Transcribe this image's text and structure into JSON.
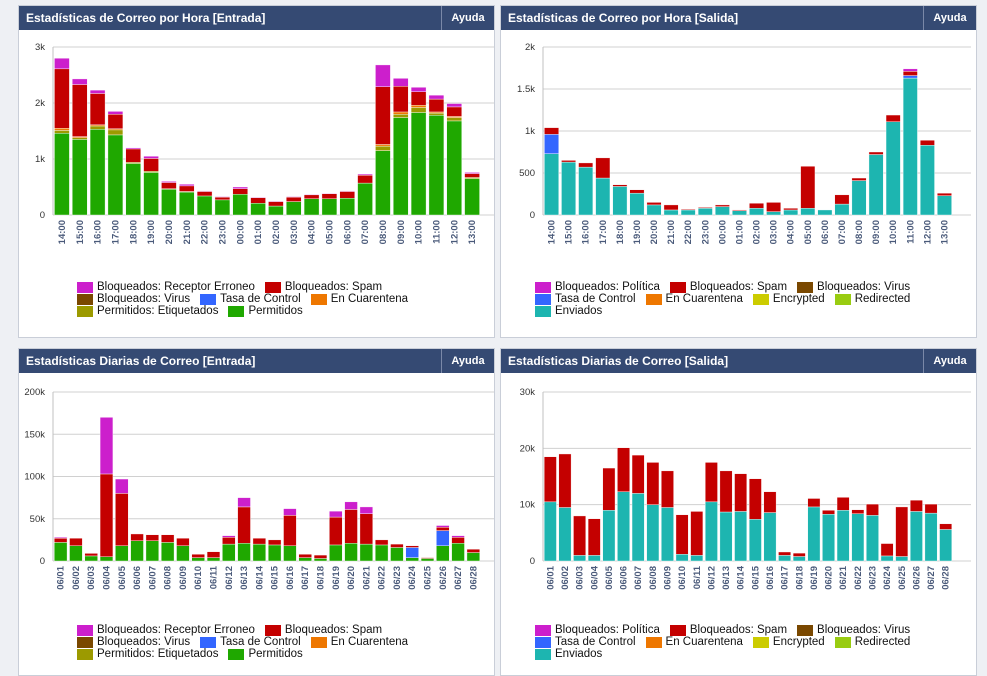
{
  "chart_data": [
    {
      "type": "bar",
      "stacked": true,
      "title": "Estadísticas de Correo por Hora [Entrada]",
      "button": "Ayuda",
      "categories": [
        "14:00",
        "15:00",
        "16:00",
        "17:00",
        "18:00",
        "19:00",
        "20:00",
        "21:00",
        "22:00",
        "23:00",
        "00:00",
        "01:00",
        "02:00",
        "03:00",
        "04:00",
        "05:00",
        "06:00",
        "07:00",
        "08:00",
        "09:00",
        "10:00",
        "11:00",
        "12:00",
        "13:00"
      ],
      "ylim": [
        0,
        3000
      ],
      "yticks": [
        0,
        {
          "value": 1000,
          "label": "1k"
        },
        {
          "value": 2000,
          "label": "2k"
        },
        {
          "value": 3000,
          "label": "3k"
        }
      ],
      "grid": true,
      "series": [
        {
          "name": "Bloqueados: Receptor Erroneo",
          "color": "#cc1fcc",
          "values": [
            190,
            100,
            60,
            50,
            20,
            40,
            20,
            30,
            10,
            10,
            30,
            10,
            10,
            10,
            10,
            10,
            10,
            20,
            390,
            140,
            80,
            70,
            60,
            20
          ]
        },
        {
          "name": "Bloqueados: Spam",
          "color": "#c40000",
          "values": [
            1060,
            930,
            560,
            260,
            240,
            230,
            110,
            100,
            80,
            50,
            100,
            100,
            80,
            80,
            70,
            90,
            120,
            140,
            1030,
            460,
            240,
            230,
            170,
            70
          ]
        },
        {
          "name": "Bloqueados: Virus",
          "color": "#7a4800",
          "values": [
            0,
            0,
            0,
            0,
            0,
            0,
            0,
            0,
            0,
            0,
            0,
            0,
            0,
            0,
            0,
            0,
            0,
            0,
            0,
            0,
            0,
            0,
            0,
            0
          ]
        },
        {
          "name": "Tasa de Control",
          "color": "#3366ff",
          "values": [
            0,
            0,
            0,
            0,
            0,
            0,
            0,
            0,
            0,
            0,
            0,
            0,
            0,
            0,
            0,
            0,
            0,
            0,
            0,
            0,
            0,
            0,
            0,
            0
          ]
        },
        {
          "name": "En Cuarentena",
          "color": "#ee7700",
          "values": [
            40,
            20,
            20,
            20,
            0,
            0,
            0,
            0,
            0,
            0,
            0,
            0,
            0,
            0,
            0,
            0,
            0,
            0,
            30,
            40,
            40,
            20,
            20,
            0
          ]
        },
        {
          "name": "Permitidos: Etiquetados",
          "color": "#9c9a00",
          "values": [
            50,
            30,
            60,
            90,
            20,
            20,
            10,
            10,
            0,
            0,
            0,
            0,
            0,
            0,
            0,
            0,
            0,
            0,
            80,
            60,
            90,
            40,
            60,
            20
          ]
        },
        {
          "name": "Permitidos",
          "color": "#1fa800",
          "values": [
            1460,
            1350,
            1530,
            1430,
            920,
            760,
            460,
            410,
            340,
            270,
            370,
            210,
            160,
            240,
            290,
            290,
            300,
            570,
            1150,
            1740,
            1830,
            1780,
            1680,
            650
          ]
        }
      ]
    },
    {
      "type": "bar",
      "stacked": true,
      "title": "Estadísticas de Correo por Hora [Salida]",
      "button": "Ayuda",
      "categories": [
        "14:00",
        "15:00",
        "16:00",
        "17:00",
        "18:00",
        "19:00",
        "20:00",
        "21:00",
        "22:00",
        "23:00",
        "00:00",
        "01:00",
        "02:00",
        "03:00",
        "04:00",
        "05:00",
        "06:00",
        "07:00",
        "08:00",
        "09:00",
        "10:00",
        "11:00",
        "12:00",
        "13:00"
      ],
      "ylim": [
        0,
        2000
      ],
      "yticks": [
        0,
        500,
        {
          "value": 1000,
          "label": "1k"
        },
        {
          "value": 1500,
          "label": "1.5k"
        },
        {
          "value": 2000,
          "label": "2k"
        }
      ],
      "grid": true,
      "series": [
        {
          "name": "Bloqueados: Política",
          "color": "#cc1fcc",
          "values": [
            0,
            0,
            0,
            0,
            0,
            0,
            0,
            0,
            0,
            0,
            0,
            0,
            0,
            0,
            0,
            0,
            0,
            0,
            0,
            0,
            0,
            30,
            0,
            0
          ]
        },
        {
          "name": "Bloqueados: Spam",
          "color": "#c40000",
          "values": [
            80,
            20,
            50,
            240,
            20,
            40,
            30,
            60,
            10,
            10,
            20,
            10,
            60,
            110,
            20,
            500,
            0,
            110,
            30,
            30,
            80,
            50,
            60,
            30
          ]
        },
        {
          "name": "Bloqueados: Virus",
          "color": "#7a4800",
          "values": [
            0,
            0,
            0,
            0,
            0,
            0,
            0,
            0,
            0,
            0,
            0,
            0,
            0,
            0,
            0,
            0,
            0,
            0,
            0,
            0,
            0,
            0,
            0,
            0
          ]
        },
        {
          "name": "Tasa de Control",
          "color": "#3366ff",
          "values": [
            230,
            0,
            0,
            0,
            0,
            0,
            0,
            0,
            0,
            0,
            0,
            0,
            0,
            0,
            0,
            0,
            0,
            0,
            0,
            0,
            0,
            30,
            0,
            0
          ]
        },
        {
          "name": "En Cuarentena",
          "color": "#ee7700",
          "values": [
            0,
            0,
            0,
            0,
            0,
            0,
            0,
            0,
            0,
            0,
            0,
            0,
            0,
            0,
            0,
            0,
            0,
            0,
            0,
            0,
            0,
            0,
            0,
            0
          ]
        },
        {
          "name": "Encrypted",
          "color": "#cccc00",
          "values": [
            0,
            0,
            0,
            0,
            0,
            0,
            0,
            0,
            0,
            0,
            0,
            0,
            0,
            0,
            0,
            0,
            0,
            0,
            0,
            0,
            0,
            0,
            0,
            0
          ]
        },
        {
          "name": "Redirected",
          "color": "#99cc11",
          "values": [
            0,
            0,
            0,
            0,
            0,
            0,
            0,
            0,
            0,
            0,
            0,
            0,
            0,
            0,
            0,
            0,
            0,
            0,
            0,
            0,
            0,
            0,
            0,
            0
          ]
        },
        {
          "name": "Enviados",
          "color": "#1db5b0",
          "values": [
            730,
            630,
            570,
            440,
            340,
            260,
            120,
            60,
            60,
            80,
            100,
            50,
            80,
            40,
            60,
            80,
            60,
            130,
            410,
            720,
            1110,
            1630,
            830,
            230
          ]
        }
      ]
    },
    {
      "type": "bar",
      "stacked": true,
      "title": "Estadísticas Diarias de Correo [Entrada]",
      "button": "Ayuda",
      "categories": [
        "06/01",
        "06/02",
        "06/03",
        "06/04",
        "06/05",
        "06/06",
        "06/07",
        "06/08",
        "06/09",
        "06/10",
        "06/11",
        "06/12",
        "06/13",
        "06/14",
        "06/15",
        "06/16",
        "06/17",
        "06/18",
        "06/19",
        "06/20",
        "06/21",
        "06/22",
        "06/23",
        "06/24",
        "06/25",
        "06/26",
        "06/27",
        "06/28"
      ],
      "ylim": [
        0,
        200000
      ],
      "yticks": [
        0,
        {
          "value": 50000,
          "label": "50k"
        },
        {
          "value": 100000,
          "label": "100k"
        },
        {
          "value": 150000,
          "label": "150k"
        },
        {
          "value": 200000,
          "label": "200k"
        }
      ],
      "grid": true,
      "series": [
        {
          "name": "Bloqueados: Receptor Erroneo",
          "color": "#cc1fcc",
          "values": [
            1000,
            0,
            0,
            67000,
            17000,
            0,
            0,
            0,
            0,
            0,
            0,
            2000,
            11000,
            0,
            0,
            8000,
            0,
            0,
            7000,
            9000,
            8000,
            0,
            0,
            0,
            0,
            2000,
            2000,
            0
          ]
        },
        {
          "name": "Bloqueados: Spam",
          "color": "#c40000",
          "values": [
            5000,
            9000,
            3000,
            98000,
            62000,
            8000,
            7000,
            9000,
            9000,
            4000,
            7000,
            8000,
            43000,
            7000,
            6000,
            36000,
            4000,
            4000,
            33000,
            40000,
            36000,
            6000,
            4000,
            2000,
            1000,
            4000,
            7000,
            4000
          ]
        },
        {
          "name": "Bloqueados: Virus",
          "color": "#7a4800",
          "values": [
            0,
            0,
            0,
            0,
            0,
            0,
            0,
            0,
            0,
            0,
            0,
            0,
            0,
            0,
            0,
            0,
            0,
            0,
            0,
            0,
            0,
            0,
            0,
            0,
            0,
            0,
            0,
            0
          ]
        },
        {
          "name": "Tasa de Control",
          "color": "#3366ff",
          "values": [
            0,
            0,
            0,
            0,
            0,
            0,
            0,
            0,
            0,
            0,
            0,
            0,
            0,
            0,
            0,
            0,
            0,
            0,
            0,
            0,
            0,
            0,
            0,
            12000,
            0,
            18000,
            0,
            0
          ]
        },
        {
          "name": "En Cuarentena",
          "color": "#ee7700",
          "values": [
            0,
            0,
            0,
            0,
            0,
            0,
            0,
            0,
            0,
            0,
            0,
            0,
            0,
            0,
            0,
            0,
            0,
            0,
            0,
            0,
            0,
            0,
            0,
            0,
            0,
            0,
            0,
            0
          ]
        },
        {
          "name": "Permitidos: Etiquetados",
          "color": "#9c9a00",
          "values": [
            0,
            0,
            0,
            0,
            0,
            0,
            0,
            0,
            0,
            0,
            0,
            0,
            0,
            0,
            0,
            0,
            0,
            0,
            0,
            0,
            0,
            0,
            0,
            0,
            0,
            0,
            0,
            0
          ]
        },
        {
          "name": "Permitidos",
          "color": "#1fa800",
          "values": [
            22000,
            18000,
            6000,
            5000,
            18000,
            24000,
            24000,
            22000,
            18000,
            4000,
            4000,
            20000,
            21000,
            20000,
            19000,
            18000,
            4000,
            3000,
            19000,
            21000,
            20000,
            19000,
            16000,
            4000,
            3000,
            18000,
            21000,
            10000
          ]
        }
      ]
    },
    {
      "type": "bar",
      "stacked": true,
      "title": "Estadísticas Diarias de Correo [Salida]",
      "button": "Ayuda",
      "categories": [
        "06/01",
        "06/02",
        "06/03",
        "06/04",
        "06/05",
        "06/06",
        "06/07",
        "06/08",
        "06/09",
        "06/10",
        "06/11",
        "06/12",
        "06/13",
        "06/14",
        "06/15",
        "06/16",
        "06/17",
        "06/18",
        "06/19",
        "06/20",
        "06/21",
        "06/22",
        "06/23",
        "06/24",
        "06/25",
        "06/26",
        "06/27",
        "06/28"
      ],
      "ylim": [
        0,
        30000
      ],
      "yticks": [
        0,
        {
          "value": 10000,
          "label": "10k"
        },
        {
          "value": 20000,
          "label": "20k"
        },
        {
          "value": 30000,
          "label": "30k"
        }
      ],
      "grid": true,
      "series": [
        {
          "name": "Bloqueados: Política",
          "color": "#cc1fcc",
          "values": [
            0,
            0,
            0,
            0,
            0,
            0,
            0,
            0,
            0,
            0,
            0,
            0,
            0,
            0,
            0,
            0,
            0,
            0,
            0,
            0,
            0,
            0,
            0,
            0,
            0,
            0,
            0,
            0
          ]
        },
        {
          "name": "Bloqueados: Spam",
          "color": "#c40000",
          "values": [
            8000,
            9500,
            7000,
            6500,
            7500,
            7800,
            6800,
            7500,
            6500,
            7000,
            7800,
            7000,
            7300,
            6700,
            7200,
            3700,
            600,
            600,
            1500,
            700,
            2300,
            700,
            2000,
            2200,
            8800,
            2000,
            1600,
            1000
          ]
        },
        {
          "name": "Bloqueados: Virus",
          "color": "#7a4800",
          "values": [
            0,
            0,
            0,
            0,
            0,
            0,
            0,
            0,
            0,
            0,
            0,
            0,
            0,
            0,
            0,
            0,
            0,
            0,
            0,
            0,
            0,
            0,
            0,
            0,
            0,
            0,
            0,
            0
          ]
        },
        {
          "name": "Tasa de Control",
          "color": "#3366ff",
          "values": [
            0,
            0,
            0,
            0,
            0,
            0,
            0,
            0,
            0,
            0,
            0,
            0,
            0,
            0,
            0,
            0,
            0,
            0,
            0,
            0,
            0,
            0,
            0,
            0,
            0,
            0,
            0,
            0
          ]
        },
        {
          "name": "En Cuarentena",
          "color": "#ee7700",
          "values": [
            0,
            0,
            0,
            0,
            0,
            0,
            0,
            0,
            0,
            0,
            0,
            0,
            0,
            0,
            0,
            0,
            0,
            0,
            0,
            0,
            0,
            0,
            0,
            0,
            0,
            0,
            0,
            0
          ]
        },
        {
          "name": "Encrypted",
          "color": "#cccc00",
          "values": [
            0,
            0,
            0,
            0,
            0,
            0,
            0,
            0,
            0,
            0,
            0,
            0,
            0,
            0,
            0,
            0,
            0,
            0,
            0,
            0,
            0,
            0,
            0,
            0,
            0,
            0,
            0,
            0
          ]
        },
        {
          "name": "Redirected",
          "color": "#99cc11",
          "values": [
            0,
            0,
            0,
            0,
            0,
            0,
            0,
            0,
            0,
            0,
            0,
            0,
            0,
            0,
            0,
            0,
            0,
            0,
            0,
            0,
            0,
            0,
            0,
            0,
            0,
            0,
            0,
            0
          ]
        },
        {
          "name": "Enviados",
          "color": "#1db5b0",
          "values": [
            10500,
            9500,
            1000,
            1000,
            9000,
            12300,
            12000,
            10000,
            9500,
            1200,
            1000,
            10500,
            8700,
            8800,
            7400,
            8600,
            1000,
            800,
            9600,
            8300,
            9000,
            8400,
            8100,
            900,
            800,
            8800,
            8500,
            5600
          ]
        }
      ]
    }
  ]
}
